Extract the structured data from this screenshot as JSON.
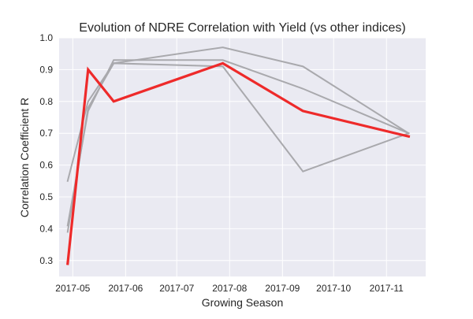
{
  "chart_data": {
    "type": "line",
    "title": "Evolution of NDRE Correlation with Yield (vs other indices)",
    "xlabel": "Growing Season",
    "ylabel": "Correlation Coefficient R",
    "x_ticks": [
      "2017-05",
      "2017-06",
      "2017-07",
      "2017-08",
      "2017-09",
      "2017-10",
      "2017-11"
    ],
    "y_ticks": [
      "0.3",
      "0.4",
      "0.5",
      "0.6",
      "0.7",
      "0.8",
      "0.9",
      "1.0"
    ],
    "xlim": [
      "2017-04-23",
      "2017-11-24"
    ],
    "ylim": [
      0.25,
      1.0
    ],
    "grid": true,
    "legend": false,
    "series": [
      {
        "x": [
          "2017-04-28",
          "2017-05-10",
          "2017-05-25",
          "2017-07-28",
          "2017-09-13",
          "2017-11-14"
        ],
        "y": [
          0.55,
          0.8,
          0.92,
          0.97,
          0.91,
          0.7
        ],
        "color": "#a9a9ad",
        "highlight": false
      },
      {
        "x": [
          "2017-04-28",
          "2017-05-10",
          "2017-05-25",
          "2017-07-28",
          "2017-09-13",
          "2017-11-14"
        ],
        "y": [
          0.41,
          0.77,
          0.93,
          0.93,
          0.84,
          0.7
        ],
        "color": "#a9a9ad",
        "highlight": false
      },
      {
        "x": [
          "2017-04-28",
          "2017-05-10",
          "2017-05-25",
          "2017-07-28",
          "2017-09-13",
          "2017-11-14"
        ],
        "y": [
          0.39,
          0.78,
          0.92,
          0.91,
          0.58,
          0.7
        ],
        "color": "#a9a9ad",
        "highlight": false
      },
      {
        "x": [
          "2017-04-28",
          "2017-05-10",
          "2017-05-25",
          "2017-07-28",
          "2017-09-13",
          "2017-11-14"
        ],
        "y": [
          0.29,
          0.9,
          0.8,
          0.92,
          0.77,
          0.69
        ],
        "color": "#ee2a2a",
        "highlight": true
      }
    ],
    "colors": {
      "plot_background": "#eaeaf2",
      "grid": "#ffffff",
      "highlight": "#ee2a2a",
      "other": "#a9a9ad"
    }
  }
}
